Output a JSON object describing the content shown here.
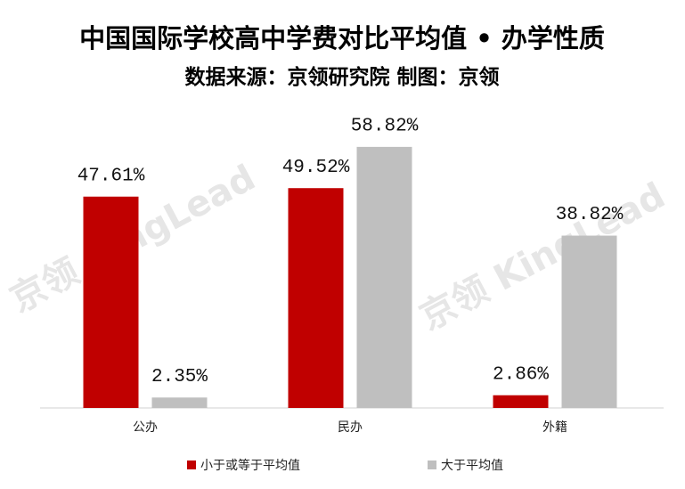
{
  "chart_data": {
    "type": "bar",
    "title": "中国国际学校高中学费对比平均值 • 办学性质",
    "subtitle": "数据来源：京领研究院 制图：京领",
    "watermark": "京领 KingLead",
    "categories": [
      "公办",
      "民办",
      "外籍"
    ],
    "series": [
      {
        "name": "小于或等于平均值",
        "color": "#c00000",
        "values": [
          47.61,
          49.52,
          2.86
        ],
        "value_labels": [
          "47.61%",
          "49.52%",
          "2.86%"
        ]
      },
      {
        "name": "大于平均值",
        "color": "#bfbfbf",
        "values": [
          2.35,
          58.82,
          38.82
        ],
        "value_labels": [
          "2.35%",
          "58.82%",
          "38.82%"
        ]
      }
    ],
    "ylim": [
      0,
      60
    ]
  }
}
